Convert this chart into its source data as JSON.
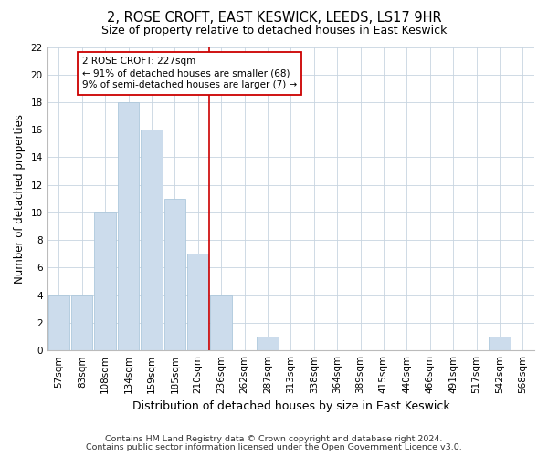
{
  "title": "2, ROSE CROFT, EAST KESWICK, LEEDS, LS17 9HR",
  "subtitle": "Size of property relative to detached houses in East Keswick",
  "xlabel": "Distribution of detached houses by size in East Keswick",
  "ylabel": "Number of detached properties",
  "bar_labels": [
    "57sqm",
    "83sqm",
    "108sqm",
    "134sqm",
    "159sqm",
    "185sqm",
    "210sqm",
    "236sqm",
    "262sqm",
    "287sqm",
    "313sqm",
    "338sqm",
    "364sqm",
    "389sqm",
    "415sqm",
    "440sqm",
    "466sqm",
    "491sqm",
    "517sqm",
    "542sqm",
    "568sqm"
  ],
  "bar_heights": [
    4,
    4,
    10,
    18,
    16,
    11,
    7,
    4,
    0,
    1,
    0,
    0,
    0,
    0,
    0,
    0,
    0,
    0,
    0,
    1,
    0
  ],
  "bar_color": "#ccdcec",
  "bar_edgecolor": "#aec8dc",
  "grid_color": "#c8d4e0",
  "annotation_line1": "2 ROSE CROFT: 227sqm",
  "annotation_line2": "← 91% of detached houses are smaller (68)",
  "annotation_line3": "9% of semi-detached houses are larger (7) →",
  "vline_x_index": 6.5,
  "vline_color": "#cc0000",
  "annotation_box_color": "#ffffff",
  "annotation_box_edgecolor": "#cc0000",
  "ylim": [
    0,
    22
  ],
  "yticks": [
    0,
    2,
    4,
    6,
    8,
    10,
    12,
    14,
    16,
    18,
    20,
    22
  ],
  "footnote1": "Contains HM Land Registry data © Crown copyright and database right 2024.",
  "footnote2": "Contains public sector information licensed under the Open Government Licence v3.0.",
  "background_color": "#ffffff",
  "plot_bg_color": "#ffffff",
  "title_fontsize": 10.5,
  "subtitle_fontsize": 9,
  "xlabel_fontsize": 9,
  "ylabel_fontsize": 8.5,
  "tick_fontsize": 7.5,
  "footnote_fontsize": 6.8
}
